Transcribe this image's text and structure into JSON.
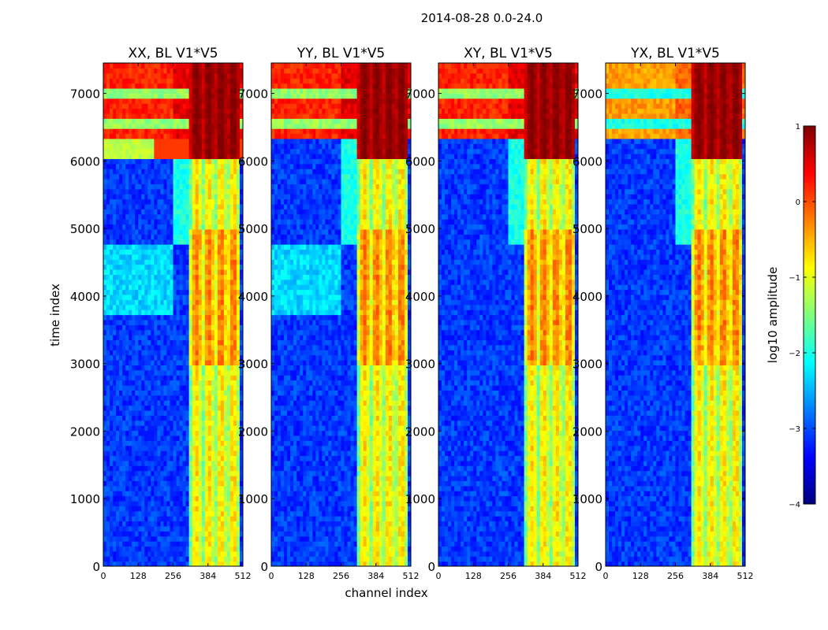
{
  "figure": {
    "suptitle": "2014-08-28 0.0-24.0",
    "xlabel": "channel index",
    "ylabel": "time index",
    "colorbar_label": "log10 amplitude"
  },
  "colors": {
    "jet": [
      "#00007f",
      "#0000ff",
      "#007fff",
      "#00ffff",
      "#7fff7f",
      "#ffff00",
      "#ff7f00",
      "#ff0000",
      "#7f0000"
    ],
    "background_noise": "#1f5fff"
  },
  "chart_data": {
    "type": "heatmap",
    "panels": [
      {
        "title": "XX, BL V1*V5"
      },
      {
        "title": "YY, BL V1*V5"
      },
      {
        "title": "XY, BL V1*V5"
      },
      {
        "title": "YX, BL V1*V5"
      }
    ],
    "xlim": [
      0,
      512
    ],
    "ylim": [
      0,
      7450
    ],
    "xticks": [
      0,
      128,
      256,
      384,
      512
    ],
    "yticks": [
      0,
      1000,
      2000,
      3000,
      4000,
      5000,
      6000,
      7000
    ],
    "colorbar": {
      "vmin": -4,
      "vmax": 1,
      "ticks": [
        1,
        0,
        -1,
        -2,
        -3,
        -4
      ],
      "tick_labels": [
        "1",
        "0",
        "−1",
        "−2",
        "−3",
        "−4"
      ]
    },
    "feature_bands": {
      "active_channels": [
        320,
        500
      ],
      "strong_time_start": 6000,
      "flare_time_range": [
        6300,
        7450
      ]
    }
  }
}
